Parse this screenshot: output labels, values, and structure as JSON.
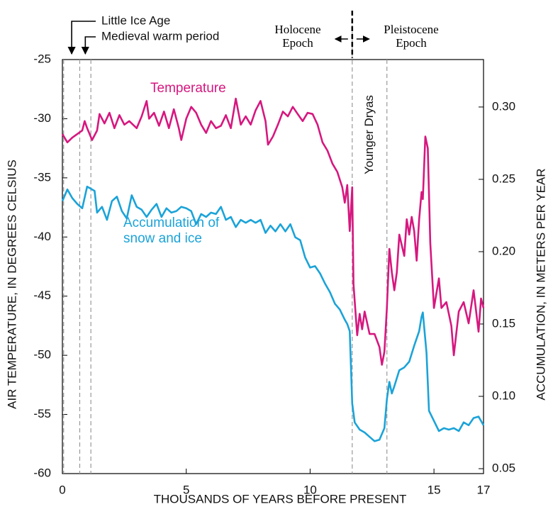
{
  "chart_data": {
    "type": "line",
    "ylabel": "AIR TEMPERATURE, IN DEGREES CELSIUS",
    "y2label": "ACCUMULATION, IN METERS PER YEAR",
    "xlabel": "THOUSANDS OF YEARS BEFORE PRESENT",
    "xlim": [
      0,
      17
    ],
    "xticks": [
      0,
      5,
      10,
      15,
      17
    ],
    "ylim": [
      -60,
      -25
    ],
    "yticks": [
      -25,
      -30,
      -35,
      -40,
      -45,
      -50,
      -55,
      -60
    ],
    "y2lim": [
      0.0466,
      0.3328
    ],
    "y2ticks": [
      {
        "value": 0.3,
        "label": "0.30"
      },
      0.25,
      {
        "value": 0.2,
        "label": "0.20"
      },
      0.15,
      {
        "value": 0.1,
        "label": "0.10"
      },
      0.05
    ],
    "vlines": [
      0.05,
      0.7,
      1.15,
      11.7,
      13.1
    ],
    "annotations": [
      "Little Ice Age",
      "Medieval warm period",
      "Holocene\nEpoch",
      "Pleistocene\nEpoch",
      "Younger Dryas"
    ],
    "series": [
      {
        "name": "Temperature",
        "color": "#d6177f",
        "axis": "y",
        "x": [
          0,
          0.2,
          0.4,
          0.6,
          0.8,
          0.9,
          1.0,
          1.2,
          1.4,
          1.5,
          1.7,
          1.9,
          2.1,
          2.3,
          2.5,
          2.7,
          3.0,
          3.2,
          3.4,
          3.5,
          3.7,
          3.9,
          4.1,
          4.3,
          4.5,
          4.7,
          4.8,
          5.0,
          5.2,
          5.4,
          5.6,
          5.8,
          6.0,
          6.2,
          6.4,
          6.6,
          6.8,
          7.0,
          7.2,
          7.4,
          7.6,
          7.8,
          8.0,
          8.2,
          8.3,
          8.5,
          8.7,
          8.9,
          9.1,
          9.3,
          9.5,
          9.7,
          9.9,
          10.1,
          10.3,
          10.5,
          10.7,
          10.9,
          11.1,
          11.3,
          11.4,
          11.5,
          11.6,
          11.7,
          11.75,
          11.9,
          12.0,
          12.1,
          12.2,
          12.4,
          12.6,
          12.8,
          12.9,
          13.0,
          13.1,
          13.2,
          13.3,
          13.4,
          13.5,
          13.6,
          13.8,
          13.9,
          14.0,
          14.1,
          14.2,
          14.3,
          14.4,
          14.5,
          14.55,
          14.65,
          14.75,
          14.85,
          15.0,
          15.2,
          15.3,
          15.5,
          15.7,
          15.8,
          16.0,
          16.2,
          16.4,
          16.6,
          16.8,
          16.9,
          17.0
        ],
        "values": [
          -31.3,
          -32,
          -31.6,
          -31.3,
          -31,
          -30.2,
          -30.8,
          -31.8,
          -31,
          -29.6,
          -30.4,
          -29.5,
          -30.8,
          -29.7,
          -30.5,
          -30.2,
          -30.8,
          -29.8,
          -28.5,
          -30,
          -29.5,
          -30.6,
          -29.4,
          -30.8,
          -29.2,
          -30.8,
          -31.8,
          -30,
          -29,
          -29.5,
          -30.5,
          -31.2,
          -30.2,
          -30.8,
          -30.6,
          -29.7,
          -30.8,
          -28.3,
          -30.5,
          -29.8,
          -30.5,
          -29.3,
          -28.5,
          -30.2,
          -32.2,
          -31.5,
          -30.5,
          -29.4,
          -29.8,
          -29,
          -29.6,
          -30.2,
          -29.5,
          -29.6,
          -30.5,
          -32,
          -32.7,
          -33.8,
          -34.5,
          -35.8,
          -37.1,
          -35.6,
          -39.5,
          -35.8,
          -44,
          -48.3,
          -46.5,
          -47.8,
          -46.3,
          -48.2,
          -48.2,
          -49.3,
          -50.8,
          -49.7,
          -46,
          -41,
          -43,
          -44.5,
          -43,
          -39.8,
          -41.6,
          -38.5,
          -39.8,
          -38.3,
          -39.5,
          -42,
          -38.5,
          -36.2,
          -36.8,
          -31.5,
          -32.5,
          -40.5,
          -46,
          -43.5,
          -46,
          -45.5,
          -47.5,
          -50,
          -46.3,
          -45.5,
          -47.3,
          -44.5,
          -48,
          -45.2,
          -46
        ]
      },
      {
        "name": "Accumulation of snow and ice",
        "color": "#1ba3d8",
        "axis": "y2",
        "x": [
          0,
          0.2,
          0.4,
          0.6,
          0.8,
          1.0,
          1.2,
          1.3,
          1.4,
          1.6,
          1.8,
          2.0,
          2.2,
          2.4,
          2.6,
          2.8,
          3.0,
          3.2,
          3.4,
          3.6,
          3.8,
          4.0,
          4.2,
          4.4,
          4.6,
          4.8,
          5.0,
          5.2,
          5.4,
          5.6,
          5.8,
          6.0,
          6.2,
          6.4,
          6.6,
          6.8,
          7.0,
          7.2,
          7.4,
          7.6,
          7.8,
          8.0,
          8.2,
          8.4,
          8.6,
          8.8,
          9.0,
          9.2,
          9.4,
          9.6,
          9.8,
          10.0,
          10.2,
          10.4,
          10.6,
          10.8,
          11.0,
          11.2,
          11.4,
          11.5,
          11.6,
          11.7,
          11.8,
          12.0,
          12.2,
          12.4,
          12.6,
          12.8,
          13.0,
          13.1,
          13.2,
          13.3,
          13.4,
          13.6,
          13.8,
          14.0,
          14.2,
          14.4,
          14.5,
          14.55,
          14.7,
          14.8,
          15.0,
          15.2,
          15.4,
          15.6,
          15.8,
          16.0,
          16.2,
          16.4,
          16.6,
          16.8,
          17.0
        ],
        "values": [
          0.235,
          0.243,
          0.237,
          0.233,
          0.23,
          0.245,
          0.243,
          0.242,
          0.227,
          0.231,
          0.222,
          0.235,
          0.238,
          0.228,
          0.223,
          0.239,
          0.231,
          0.229,
          0.224,
          0.229,
          0.233,
          0.224,
          0.23,
          0.227,
          0.228,
          0.231,
          0.23,
          0.228,
          0.219,
          0.226,
          0.224,
          0.227,
          0.226,
          0.231,
          0.222,
          0.224,
          0.217,
          0.222,
          0.22,
          0.222,
          0.22,
          0.222,
          0.213,
          0.218,
          0.214,
          0.219,
          0.214,
          0.219,
          0.21,
          0.208,
          0.196,
          0.189,
          0.19,
          0.185,
          0.178,
          0.172,
          0.164,
          0.16,
          0.153,
          0.15,
          0.145,
          0.095,
          0.082,
          0.077,
          0.075,
          0.072,
          0.069,
          0.07,
          0.078,
          0.098,
          0.11,
          0.102,
          0.107,
          0.118,
          0.12,
          0.124,
          0.135,
          0.145,
          0.155,
          0.158,
          0.13,
          0.09,
          0.083,
          0.076,
          0.078,
          0.077,
          0.078,
          0.076,
          0.082,
          0.08,
          0.085,
          0.086,
          0.08
        ]
      }
    ]
  }
}
